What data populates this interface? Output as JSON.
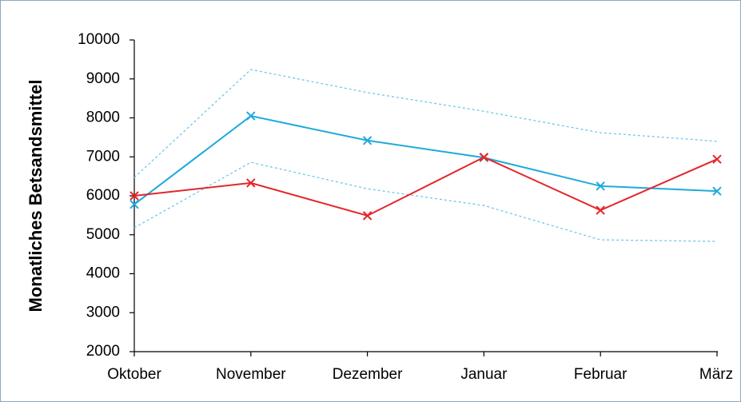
{
  "chart_data": {
    "type": "line",
    "y_label": "Monatliches Betsandsmittel",
    "categories": [
      "Oktober",
      "November",
      "Dezember",
      "Januar",
      "Februar",
      "März"
    ],
    "series": [
      {
        "color": "#6ec8ea",
        "line_style": "dashed",
        "values": [
          6470,
          9240,
          8650,
          8170,
          7620,
          7400
        ]
      },
      {
        "color": "#6ec8ea",
        "line_style": "dashed",
        "values": [
          5180,
          6860,
          6180,
          5750,
          4870,
          4830
        ]
      },
      {
        "color": "#1eaadc",
        "line_style": "solid",
        "marker": "x",
        "values": [
          5780,
          8050,
          7420,
          6980,
          6250,
          6120
        ]
      },
      {
        "color": "#e3262c",
        "line_style": "solid",
        "marker": "x",
        "values": [
          6000,
          6330,
          5490,
          6990,
          5630,
          6940
        ]
      }
    ],
    "ylim": [
      2000,
      10000
    ],
    "yticks": [
      2000,
      3000,
      4000,
      5000,
      6000,
      7000,
      8000,
      9000,
      10000
    ],
    "grid": false
  }
}
